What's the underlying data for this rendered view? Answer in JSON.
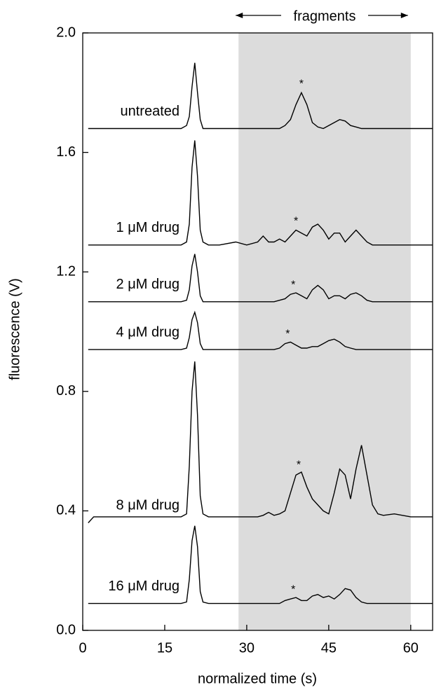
{
  "chart_data": {
    "type": "line",
    "xlabel": "normalized time (s)",
    "ylabel": "fluorescence (V)",
    "xlim": [
      0,
      64
    ],
    "ylim": [
      0,
      2
    ],
    "xticks": [
      0,
      15,
      30,
      45,
      60
    ],
    "yticks": [
      {
        "value": 0,
        "label": "0.0"
      },
      {
        "value": 0.4,
        "label": "0.4"
      },
      {
        "value": 0.8,
        "label": "0.8"
      },
      {
        "value": 1.2,
        "label": "1.2"
      },
      {
        "value": 1.6,
        "label": "1.6"
      },
      {
        "value": 2,
        "label": "2.0"
      }
    ],
    "shaded_region": [
      28.5,
      60
    ],
    "shade_color": "#dcdcdc",
    "region_label": "fragments",
    "x": [
      1,
      2,
      5,
      10,
      15,
      18,
      19,
      19.5,
      20,
      20.5,
      21,
      21.5,
      22,
      23,
      25,
      28,
      30,
      32,
      33,
      34,
      35,
      36,
      37,
      38,
      39,
      40,
      41,
      42,
      43,
      44,
      45,
      46,
      47,
      48,
      49,
      50,
      51,
      52,
      53,
      54,
      55,
      57,
      60,
      64
    ],
    "series": [
      {
        "name": "untreated",
        "color": "#000000",
        "annotation": {
          "text": "*",
          "x": 40
        },
        "values": [
          1.68,
          1.68,
          1.68,
          1.68,
          1.68,
          1.68,
          1.69,
          1.72,
          1.82,
          1.9,
          1.8,
          1.71,
          1.68,
          1.68,
          1.68,
          1.68,
          1.68,
          1.68,
          1.68,
          1.68,
          1.68,
          1.68,
          1.69,
          1.71,
          1.76,
          1.8,
          1.76,
          1.7,
          1.685,
          1.68,
          1.69,
          1.7,
          1.71,
          1.705,
          1.69,
          1.685,
          1.68,
          1.68,
          1.68,
          1.68,
          1.68,
          1.68,
          1.68,
          1.68
        ]
      },
      {
        "name": "1 μM drug",
        "color": "#000000",
        "annotation": {
          "text": "*",
          "x": 39
        },
        "values": [
          1.29,
          1.29,
          1.29,
          1.29,
          1.29,
          1.29,
          1.3,
          1.36,
          1.55,
          1.64,
          1.52,
          1.34,
          1.3,
          1.29,
          1.29,
          1.3,
          1.29,
          1.3,
          1.32,
          1.3,
          1.3,
          1.31,
          1.3,
          1.32,
          1.34,
          1.33,
          1.32,
          1.35,
          1.36,
          1.34,
          1.31,
          1.33,
          1.33,
          1.3,
          1.32,
          1.34,
          1.32,
          1.3,
          1.29,
          1.29,
          1.29,
          1.29,
          1.29,
          1.29
        ]
      },
      {
        "name": "2 μM drug",
        "color": "#000000",
        "annotation": {
          "text": "*",
          "x": 38.5
        },
        "values": [
          1.1,
          1.1,
          1.1,
          1.1,
          1.1,
          1.1,
          1.105,
          1.14,
          1.22,
          1.26,
          1.2,
          1.12,
          1.1,
          1.1,
          1.1,
          1.1,
          1.1,
          1.1,
          1.1,
          1.1,
          1.1,
          1.105,
          1.11,
          1.125,
          1.13,
          1.12,
          1.11,
          1.14,
          1.155,
          1.14,
          1.11,
          1.12,
          1.12,
          1.11,
          1.125,
          1.13,
          1.12,
          1.105,
          1.1,
          1.1,
          1.1,
          1.1,
          1.1,
          1.1
        ]
      },
      {
        "name": "4 μM drug",
        "color": "#000000",
        "annotation": {
          "text": "*",
          "x": 37.5
        },
        "values": [
          0.94,
          0.94,
          0.94,
          0.94,
          0.94,
          0.94,
          0.945,
          0.98,
          1.04,
          1.065,
          1.03,
          0.96,
          0.94,
          0.94,
          0.94,
          0.94,
          0.94,
          0.94,
          0.94,
          0.94,
          0.94,
          0.945,
          0.96,
          0.965,
          0.955,
          0.945,
          0.945,
          0.95,
          0.95,
          0.96,
          0.97,
          0.975,
          0.965,
          0.95,
          0.945,
          0.94,
          0.94,
          0.94,
          0.94,
          0.94,
          0.94,
          0.94,
          0.94,
          0.94
        ]
      },
      {
        "name": "8 μM drug",
        "color": "#000000",
        "annotation": {
          "text": "*",
          "x": 39.5
        },
        "values": [
          0.36,
          0.38,
          0.38,
          0.38,
          0.38,
          0.38,
          0.39,
          0.55,
          0.8,
          0.9,
          0.72,
          0.45,
          0.39,
          0.38,
          0.38,
          0.38,
          0.38,
          0.38,
          0.385,
          0.395,
          0.385,
          0.39,
          0.4,
          0.46,
          0.52,
          0.53,
          0.48,
          0.44,
          0.42,
          0.4,
          0.39,
          0.46,
          0.54,
          0.52,
          0.44,
          0.54,
          0.62,
          0.52,
          0.42,
          0.39,
          0.385,
          0.39,
          0.38,
          0.38
        ]
      },
      {
        "name": "16 μM drug",
        "color": "#000000",
        "annotation": {
          "text": "*",
          "x": 38.5
        },
        "values": [
          0.09,
          0.09,
          0.09,
          0.09,
          0.09,
          0.09,
          0.095,
          0.17,
          0.3,
          0.35,
          0.28,
          0.13,
          0.095,
          0.09,
          0.09,
          0.09,
          0.09,
          0.09,
          0.09,
          0.09,
          0.09,
          0.09,
          0.1,
          0.105,
          0.11,
          0.1,
          0.1,
          0.115,
          0.12,
          0.11,
          0.115,
          0.105,
          0.12,
          0.14,
          0.135,
          0.11,
          0.095,
          0.09,
          0.09,
          0.09,
          0.09,
          0.09,
          0.09,
          0.09
        ]
      }
    ]
  }
}
